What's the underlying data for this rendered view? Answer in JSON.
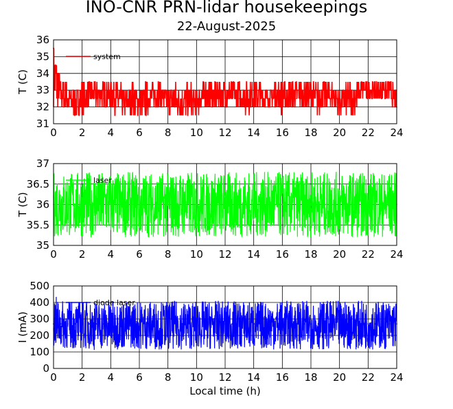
{
  "header": {
    "title": "INO-CNR PRN-lidar housekeepings",
    "date": "22-August-2025"
  },
  "chart_data": [
    {
      "type": "line",
      "ylabel": "T (C)",
      "xlabel": "",
      "xlim": [
        0,
        24
      ],
      "ylim": [
        31,
        36
      ],
      "xticks": [
        "0",
        "2",
        "4",
        "6",
        "8",
        "10",
        "12",
        "14",
        "16",
        "18",
        "20",
        "22",
        "24"
      ],
      "yticks": [
        "31",
        "32",
        "33",
        "34",
        "35",
        "36"
      ],
      "grid": true,
      "legend_position": "top-left",
      "series": [
        {
          "name": "system",
          "color": "#ff0000",
          "x": [
            0,
            0.5,
            1,
            1.5,
            2,
            2.5,
            3,
            3.5,
            4,
            4.5,
            5,
            5.5,
            6,
            6.5,
            7,
            7.5,
            8,
            8.5,
            9,
            9.5,
            10,
            10.5,
            11,
            11.5,
            12,
            12.5,
            13,
            13.5,
            14,
            14.5,
            15,
            15.5,
            16,
            16.5,
            17,
            17.5,
            18,
            18.5,
            19,
            19.5,
            20,
            20.5,
            21,
            21.5,
            22,
            22.5,
            23,
            23.5,
            24
          ],
          "y": [
            35.5,
            32.5,
            32.5,
            32,
            32,
            33,
            32.5,
            32.5,
            32.5,
            32.5,
            32,
            32.5,
            32,
            32,
            32.5,
            32.5,
            32,
            32.5,
            32,
            32.5,
            32,
            32.5,
            33,
            32.5,
            32.5,
            32.5,
            32.5,
            32.5,
            32.5,
            32.5,
            32.5,
            32.5,
            32.5,
            32.5,
            32.5,
            32.5,
            32.5,
            32.5,
            32.5,
            32.5,
            32,
            32.5,
            32.5,
            33,
            33,
            33,
            33,
            33,
            32
          ],
          "band_low": [
            32,
            32,
            31.5,
            31.5,
            31.5,
            32,
            32,
            32,
            32,
            31.5,
            31.5,
            31.5,
            31.5,
            31.5,
            32,
            32,
            31.5,
            31.5,
            31.5,
            31.5,
            31.5,
            32,
            32,
            32,
            32,
            32,
            32,
            31.5,
            32,
            32,
            32,
            32,
            31.5,
            32,
            32,
            32,
            32,
            31.5,
            32,
            32,
            31.5,
            31.5,
            31.5,
            32.5,
            32.5,
            32.5,
            32.5,
            32.5,
            31.5
          ],
          "band_high": [
            36,
            33.5,
            33.5,
            33,
            33.5,
            33.5,
            33.5,
            33.5,
            33.5,
            33.5,
            33,
            33.5,
            33,
            33.5,
            33.5,
            33.5,
            33,
            33.5,
            33,
            33.5,
            33,
            33.5,
            33.5,
            33.5,
            33.5,
            33.5,
            33.5,
            33.5,
            33.5,
            33.5,
            33,
            33.5,
            33.5,
            33.5,
            33.5,
            33.5,
            33.5,
            33.5,
            33.5,
            33.5,
            33,
            33.5,
            33.5,
            33.5,
            33.5,
            33.5,
            33.5,
            33.5,
            33
          ]
        }
      ]
    },
    {
      "type": "line",
      "ylabel": "T (C)",
      "xlabel": "",
      "xlim": [
        0,
        24
      ],
      "ylim": [
        35,
        37
      ],
      "xticks": [
        "0",
        "2",
        "4",
        "6",
        "8",
        "10",
        "12",
        "14",
        "16",
        "18",
        "20",
        "22",
        "24"
      ],
      "yticks": [
        "35",
        "35.5",
        "36",
        "36.5",
        "37"
      ],
      "grid": true,
      "legend_position": "top-left",
      "series": [
        {
          "name": "laser",
          "color": "#00ff00",
          "x": [
            0,
            0.5,
            1,
            1.5,
            2,
            2.5,
            3,
            3.5,
            4,
            4.5,
            5,
            5.5,
            6,
            6.5,
            7,
            7.5,
            8,
            8.5,
            9,
            9.5,
            10,
            10.5,
            11,
            11.5,
            12,
            12.5,
            13,
            13.5,
            14,
            14.5,
            15,
            15.5,
            16,
            16.5,
            17,
            17.5,
            18,
            18.5,
            19,
            19.5,
            20,
            20.5,
            21,
            21.5,
            22,
            22.5,
            23,
            23.5,
            24
          ],
          "y": [
            36,
            36,
            36,
            36,
            36,
            36,
            36,
            36,
            36,
            36,
            36,
            36,
            36,
            36,
            36,
            36,
            36,
            36,
            36,
            36,
            36,
            36,
            36,
            36,
            36,
            36,
            36,
            36,
            36,
            36,
            36,
            36,
            36,
            36,
            36,
            36,
            36,
            36,
            36,
            36,
            36,
            36,
            36,
            36,
            36,
            36,
            36,
            36,
            36
          ],
          "band_low": [
            35.2,
            35.2,
            35.2,
            35.2,
            35.2,
            35.2,
            35.2,
            35.2,
            35.2,
            35.2,
            35.2,
            35.2,
            35.2,
            35.2,
            35.2,
            35.2,
            35.2,
            35.2,
            35.2,
            35.2,
            35.2,
            35.2,
            35.2,
            35.2,
            35.2,
            35.2,
            35.2,
            35.2,
            35.2,
            35.2,
            35.2,
            35.2,
            35.2,
            35.2,
            35.2,
            35.2,
            35.2,
            35.2,
            35.2,
            35.2,
            35.2,
            35.2,
            35.2,
            35.2,
            35.2,
            35.2,
            35.2,
            35.2,
            35.2
          ],
          "band_high": [
            36.8,
            36.8,
            36.8,
            36.8,
            36.8,
            36.8,
            36.8,
            36.8,
            36.8,
            36.8,
            36.8,
            36.8,
            36.8,
            36.8,
            36.8,
            36.8,
            36.8,
            36.8,
            36.8,
            36.8,
            36.8,
            36.8,
            36.8,
            36.8,
            36.8,
            36.8,
            36.8,
            36.8,
            36.8,
            36.8,
            36.8,
            36.8,
            36.8,
            36.8,
            36.8,
            36.8,
            36.8,
            36.8,
            36.8,
            36.8,
            36.8,
            36.8,
            36.8,
            36.8,
            36.8,
            36.8,
            36.8,
            36.8,
            36.8
          ]
        }
      ]
    },
    {
      "type": "line",
      "ylabel": "I (mA)",
      "xlabel": "Local time (h)",
      "xlim": [
        0,
        24
      ],
      "ylim": [
        0,
        500
      ],
      "xticks": [
        "0",
        "2",
        "4",
        "6",
        "8",
        "10",
        "12",
        "14",
        "16",
        "18",
        "20",
        "22",
        "24"
      ],
      "yticks": [
        "0",
        "100",
        "200",
        "300",
        "400",
        "500"
      ],
      "grid": true,
      "legend_position": "top-left",
      "series": [
        {
          "name": "diode laser",
          "color": "#0000ff",
          "x": [
            0,
            0.5,
            1,
            1.5,
            2,
            2.5,
            3,
            3.5,
            4,
            4.5,
            5,
            5.5,
            6,
            6.5,
            7,
            7.5,
            8,
            8.5,
            9,
            9.5,
            10,
            10.5,
            11,
            11.5,
            12,
            12.5,
            13,
            13.5,
            14,
            14.5,
            15,
            15.5,
            16,
            16.5,
            17,
            17.5,
            18,
            18.5,
            19,
            19.5,
            20,
            20.5,
            21,
            21.5,
            22,
            22.5,
            23,
            23.5,
            24
          ],
          "y": [
            270,
            270,
            270,
            270,
            270,
            270,
            270,
            270,
            270,
            270,
            270,
            270,
            270,
            270,
            270,
            270,
            270,
            270,
            270,
            270,
            270,
            270,
            270,
            270,
            270,
            270,
            270,
            270,
            270,
            270,
            270,
            270,
            270,
            270,
            270,
            270,
            270,
            270,
            270,
            270,
            270,
            270,
            270,
            270,
            270,
            270,
            270,
            270,
            270
          ],
          "band_low": [
            120,
            120,
            115,
            115,
            120,
            115,
            110,
            115,
            115,
            115,
            115,
            120,
            115,
            115,
            115,
            115,
            115,
            115,
            115,
            115,
            115,
            115,
            115,
            115,
            115,
            115,
            115,
            115,
            115,
            115,
            115,
            115,
            115,
            115,
            115,
            115,
            115,
            115,
            115,
            115,
            115,
            115,
            115,
            115,
            115,
            115,
            115,
            115,
            120
          ],
          "band_high": [
            450,
            410,
            410,
            410,
            410,
            410,
            410,
            410,
            410,
            410,
            410,
            410,
            410,
            410,
            410,
            410,
            410,
            410,
            410,
            410,
            410,
            410,
            410,
            410,
            410,
            410,
            410,
            410,
            410,
            410,
            410,
            410,
            410,
            410,
            410,
            410,
            410,
            410,
            410,
            410,
            410,
            410,
            410,
            410,
            410,
            410,
            410,
            410,
            410
          ]
        }
      ]
    }
  ]
}
